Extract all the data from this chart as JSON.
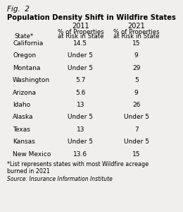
{
  "fig_label": "Fig.  2",
  "title": "Population Density Shift in Wildfire States",
  "col_headers": [
    "",
    "2011",
    "2021"
  ],
  "col_subheaders": [
    "State*",
    "% of Properties\nat Risk in State",
    "% of Properties\nat Risk in State"
  ],
  "rows": [
    [
      "California",
      "14.5",
      "15"
    ],
    [
      "Oregon",
      "Under 5",
      "9"
    ],
    [
      "Montana",
      "Under 5",
      "29"
    ],
    [
      "Washington",
      "5.7",
      "5"
    ],
    [
      "Arizona",
      "5.6",
      "9"
    ],
    [
      "Idaho",
      "13",
      "26"
    ],
    [
      "Alaska",
      "Under 5",
      "Under 5"
    ],
    [
      "Texas",
      "13",
      "7"
    ],
    [
      "Kansas",
      "Under 5",
      "Under 5"
    ],
    [
      "New Mexico",
      "13.6",
      "15"
    ]
  ],
  "footnote": "*List represents states with most Wildfire acreage\nburned in 2021",
  "source": "Source: Insurance Information Institute",
  "background_color": "#f0efee",
  "text_color": "#000000"
}
